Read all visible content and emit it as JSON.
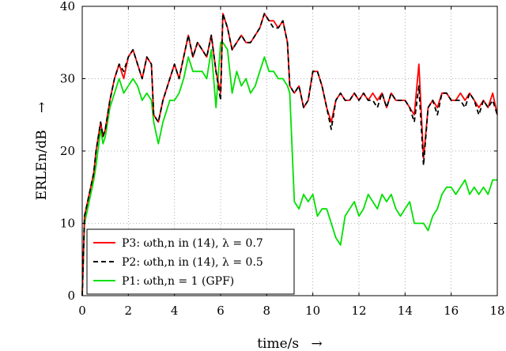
{
  "chart_data": {
    "type": "line",
    "xlabel": "time/s",
    "xlabel_arrow": "→",
    "ylabel": "ERLEn/dB",
    "ylabel_arrow": "→",
    "xlim": [
      0,
      18
    ],
    "ylim": [
      0,
      40
    ],
    "xticks": [
      0,
      2,
      4,
      6,
      8,
      10,
      12,
      14,
      16,
      18
    ],
    "yticks": [
      0,
      10,
      20,
      30,
      40
    ],
    "grid": true,
    "legend_position": "bottom-left",
    "series": [
      {
        "name": "P3: ωth,n in (14), λ = 0.7",
        "color": "#ff0000",
        "dash": "solid",
        "x": [
          0,
          0.1,
          0.3,
          0.5,
          0.6,
          0.8,
          0.9,
          1.0,
          1.2,
          1.4,
          1.6,
          1.8,
          2.0,
          2.2,
          2.4,
          2.6,
          2.8,
          3.0,
          3.1,
          3.3,
          3.5,
          3.6,
          3.8,
          4.0,
          4.2,
          4.4,
          4.6,
          4.8,
          5.0,
          5.2,
          5.4,
          5.6,
          5.8,
          6.0,
          6.1,
          6.3,
          6.5,
          6.7,
          6.9,
          7.1,
          7.3,
          7.5,
          7.7,
          7.9,
          8.1,
          8.3,
          8.5,
          8.7,
          8.9,
          9.0,
          9.2,
          9.4,
          9.6,
          9.8,
          10.0,
          10.2,
          10.4,
          10.6,
          10.8,
          11.0,
          11.2,
          11.4,
          11.6,
          11.8,
          12.0,
          12.2,
          12.4,
          12.6,
          12.8,
          13.0,
          13.2,
          13.4,
          13.6,
          13.8,
          14.0,
          14.2,
          14.4,
          14.6,
          14.8,
          15.0,
          15.2,
          15.4,
          15.6,
          15.8,
          16.0,
          16.2,
          16.4,
          16.6,
          16.8,
          17.0,
          17.2,
          17.4,
          17.6,
          17.8,
          18.0
        ],
        "y": [
          0,
          11,
          14,
          17,
          20,
          24,
          22,
          23,
          27,
          30,
          32,
          30,
          33,
          34,
          32,
          30,
          33,
          32,
          25,
          24,
          27,
          28,
          30,
          32,
          30,
          33,
          36,
          33,
          35,
          34,
          33,
          36,
          31,
          28,
          39,
          37,
          34,
          35,
          36,
          35,
          35,
          36,
          37,
          39,
          38,
          38,
          37,
          38,
          35,
          29,
          28,
          29,
          26,
          27,
          31,
          31,
          29,
          26,
          24,
          27,
          28,
          27,
          27,
          28,
          27,
          28,
          27,
          28,
          27,
          28,
          26,
          28,
          27,
          27,
          27,
          26,
          25,
          32,
          19,
          26,
          27,
          26,
          28,
          28,
          27,
          27,
          28,
          27,
          28,
          27,
          26,
          27,
          26,
          28,
          25
        ]
      },
      {
        "name": "P2: ωth,n in (14), λ = 0.5",
        "color": "#000000",
        "dash": "dashed",
        "x": [
          0,
          0.1,
          0.3,
          0.5,
          0.6,
          0.8,
          0.9,
          1.0,
          1.2,
          1.4,
          1.6,
          1.8,
          2.0,
          2.2,
          2.4,
          2.6,
          2.8,
          3.0,
          3.1,
          3.3,
          3.5,
          3.6,
          3.8,
          4.0,
          4.2,
          4.4,
          4.6,
          4.8,
          5.0,
          5.2,
          5.4,
          5.6,
          5.8,
          6.0,
          6.1,
          6.3,
          6.5,
          6.7,
          6.9,
          7.1,
          7.3,
          7.5,
          7.7,
          7.9,
          8.1,
          8.3,
          8.5,
          8.7,
          8.9,
          9.0,
          9.2,
          9.4,
          9.6,
          9.8,
          10.0,
          10.2,
          10.4,
          10.6,
          10.8,
          11.0,
          11.2,
          11.4,
          11.6,
          11.8,
          12.0,
          12.2,
          12.4,
          12.6,
          12.8,
          13.0,
          13.2,
          13.4,
          13.6,
          13.8,
          14.0,
          14.2,
          14.4,
          14.6,
          14.8,
          15.0,
          15.2,
          15.4,
          15.6,
          15.8,
          16.0,
          16.2,
          16.4,
          16.6,
          16.8,
          17.0,
          17.2,
          17.4,
          17.6,
          17.8,
          18.0
        ],
        "y": [
          0,
          11,
          14,
          17,
          20,
          24,
          22,
          23,
          27,
          30,
          32,
          31,
          33,
          34,
          32,
          30,
          33,
          32,
          25,
          24,
          27,
          28,
          30,
          32,
          30,
          33,
          36,
          33,
          35,
          34,
          33,
          36,
          31,
          27,
          39,
          37,
          34,
          35,
          36,
          35,
          35,
          36,
          37,
          39,
          38,
          37,
          37,
          38,
          35,
          29,
          28,
          29,
          26,
          27,
          31,
          31,
          29,
          26,
          23,
          27,
          28,
          27,
          27,
          28,
          27,
          28,
          27,
          27,
          26,
          28,
          26,
          28,
          27,
          27,
          27,
          26,
          24,
          29,
          18,
          26,
          27,
          25,
          28,
          28,
          27,
          27,
          27,
          26,
          28,
          27,
          25,
          27,
          26,
          27,
          25
        ]
      },
      {
        "name": "P1: ωth,n = 1 (GPF)",
        "color": "#00e000",
        "dash": "solid",
        "x": [
          0,
          0.1,
          0.3,
          0.5,
          0.6,
          0.8,
          0.9,
          1.0,
          1.2,
          1.4,
          1.6,
          1.8,
          2.0,
          2.2,
          2.4,
          2.6,
          2.8,
          3.0,
          3.1,
          3.3,
          3.5,
          3.6,
          3.8,
          4.0,
          4.2,
          4.4,
          4.6,
          4.8,
          5.0,
          5.2,
          5.4,
          5.6,
          5.8,
          6.0,
          6.1,
          6.3,
          6.5,
          6.7,
          6.9,
          7.1,
          7.3,
          7.5,
          7.7,
          7.9,
          8.1,
          8.3,
          8.5,
          8.7,
          8.9,
          9.0,
          9.2,
          9.4,
          9.6,
          9.8,
          10.0,
          10.2,
          10.4,
          10.6,
          10.8,
          11.0,
          11.2,
          11.4,
          11.6,
          11.8,
          12.0,
          12.2,
          12.4,
          12.6,
          12.8,
          13.0,
          13.2,
          13.4,
          13.6,
          13.8,
          14.0,
          14.2,
          14.4,
          14.6,
          14.8,
          15.0,
          15.2,
          15.4,
          15.6,
          15.8,
          16.0,
          16.2,
          16.4,
          16.6,
          16.8,
          17.0,
          17.2,
          17.4,
          17.6,
          17.8,
          18.0
        ],
        "y": [
          0,
          10,
          13,
          16,
          18,
          23,
          21,
          22,
          26,
          28,
          30,
          28,
          29,
          30,
          29,
          27,
          28,
          27,
          24,
          21,
          24,
          25,
          27,
          27,
          28,
          30,
          33,
          31,
          31,
          31,
          30,
          34,
          26,
          35,
          35,
          34,
          28,
          31,
          29,
          30,
          28,
          29,
          31,
          33,
          31,
          31,
          30,
          30,
          29,
          28,
          13,
          12,
          14,
          13,
          14,
          11,
          12,
          12,
          10,
          8,
          7,
          11,
          12,
          13,
          11,
          12,
          14,
          13,
          12,
          14,
          13,
          14,
          12,
          11,
          12,
          13,
          10,
          10,
          10,
          9,
          11,
          12,
          14,
          15,
          15,
          14,
          15,
          16,
          14,
          15,
          14,
          15,
          14,
          16,
          16
        ]
      }
    ]
  }
}
